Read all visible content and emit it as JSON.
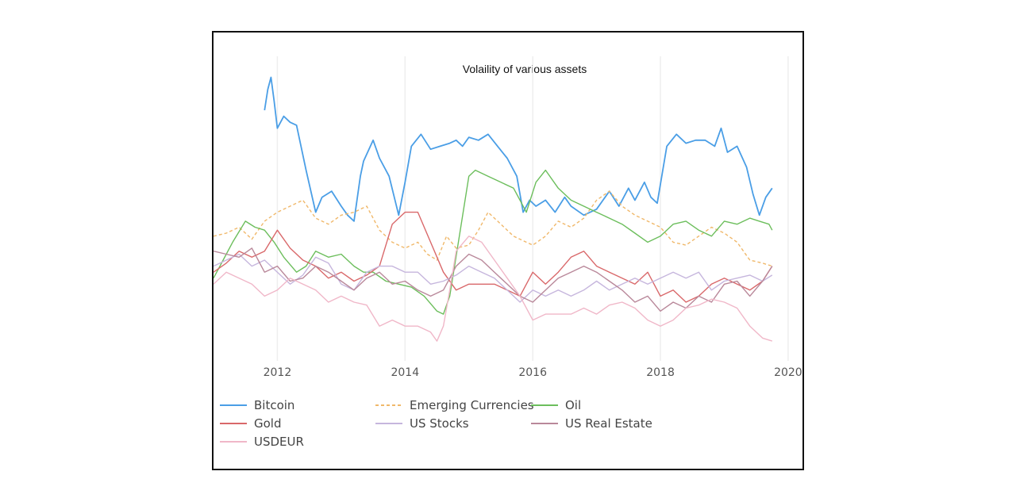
{
  "chart_data": {
    "type": "line",
    "title": "Volaility of various assets",
    "xlabel": "",
    "ylabel": "",
    "xlim": [
      2011.0,
      2020.2
    ],
    "ylim": [
      0,
      100
    ],
    "grid": true,
    "x_ticks": [
      "2012",
      "2014",
      "2016",
      "2018",
      "2020"
    ],
    "x_tick_values": [
      2012,
      2014,
      2016,
      2018,
      2020
    ],
    "legend_position": "bottom",
    "series": [
      {
        "name": "Bitcoin",
        "color": "#4a9ee6",
        "dash": "solid",
        "x": [
          2011.8,
          2011.85,
          2011.9,
          2011.95,
          2012.0,
          2012.1,
          2012.2,
          2012.3,
          2012.45,
          2012.6,
          2012.7,
          2012.85,
          2013.0,
          2013.1,
          2013.2,
          2013.3,
          2013.35,
          2013.5,
          2013.6,
          2013.75,
          2013.9,
          2014.0,
          2014.1,
          2014.25,
          2014.4,
          2014.55,
          2014.7,
          2014.8,
          2014.9,
          2015.0,
          2015.15,
          2015.3,
          2015.45,
          2015.6,
          2015.75,
          2015.85,
          2015.95,
          2016.05,
          2016.2,
          2016.35,
          2016.5,
          2016.6,
          2016.8,
          2017.0,
          2017.2,
          2017.35,
          2017.5,
          2017.6,
          2017.75,
          2017.85,
          2017.95,
          2018.1,
          2018.25,
          2018.4,
          2018.55,
          2018.7,
          2018.85,
          2018.95,
          2019.05,
          2019.2,
          2019.35,
          2019.45,
          2019.55,
          2019.65,
          2019.75
        ],
        "values": [
          82,
          89,
          93,
          85,
          76,
          80,
          78,
          77,
          62,
          48,
          53,
          55,
          50,
          47,
          45,
          60,
          65,
          72,
          66,
          60,
          47,
          58,
          70,
          74,
          69,
          70,
          71,
          72,
          70,
          73,
          72,
          74,
          70,
          66,
          60,
          48,
          52,
          50,
          52,
          48,
          53,
          50,
          47,
          49,
          55,
          50,
          56,
          52,
          58,
          53,
          51,
          70,
          74,
          71,
          72,
          72,
          70,
          76,
          68,
          70,
          63,
          54,
          47,
          53,
          56
        ]
      },
      {
        "name": "Emerging Currencies",
        "color": "#f0b86a",
        "dash": "dashed",
        "x": [
          2011.0,
          2011.2,
          2011.4,
          2011.6,
          2011.8,
          2012.0,
          2012.2,
          2012.4,
          2012.6,
          2012.8,
          2013.0,
          2013.2,
          2013.4,
          2013.6,
          2013.8,
          2014.0,
          2014.2,
          2014.35,
          2014.5,
          2014.65,
          2014.8,
          2015.0,
          2015.15,
          2015.3,
          2015.5,
          2015.7,
          2015.9,
          2016.0,
          2016.2,
          2016.4,
          2016.6,
          2016.8,
          2017.0,
          2017.2,
          2017.4,
          2017.6,
          2017.8,
          2018.0,
          2018.2,
          2018.4,
          2018.6,
          2018.8,
          2019.0,
          2019.2,
          2019.4,
          2019.6,
          2019.75
        ],
        "values": [
          40,
          41,
          43,
          39,
          45,
          48,
          50,
          52,
          46,
          44,
          47,
          48,
          50,
          42,
          38,
          36,
          38,
          34,
          32,
          40,
          36,
          37,
          42,
          48,
          44,
          40,
          38,
          37,
          40,
          45,
          43,
          46,
          52,
          55,
          50,
          47,
          45,
          43,
          38,
          37,
          40,
          43,
          41,
          38,
          32,
          31,
          30
        ]
      },
      {
        "name": "Oil",
        "color": "#6cbe5c",
        "dash": "solid",
        "x": [
          2011.0,
          2011.15,
          2011.3,
          2011.5,
          2011.65,
          2011.8,
          2011.95,
          2012.1,
          2012.3,
          2012.45,
          2012.6,
          2012.8,
          2013.0,
          2013.2,
          2013.35,
          2013.5,
          2013.7,
          2013.9,
          2014.1,
          2014.3,
          2014.5,
          2014.6,
          2014.7,
          2014.85,
          2015.0,
          2015.1,
          2015.3,
          2015.5,
          2015.7,
          2015.8,
          2015.9,
          2016.05,
          2016.2,
          2016.4,
          2016.6,
          2016.8,
          2017.0,
          2017.2,
          2017.4,
          2017.6,
          2017.8,
          2018.0,
          2018.2,
          2018.4,
          2018.6,
          2018.8,
          2019.0,
          2019.2,
          2019.4,
          2019.55,
          2019.7,
          2019.75
        ],
        "values": [
          26,
          32,
          38,
          45,
          43,
          42,
          38,
          33,
          28,
          30,
          35,
          33,
          34,
          30,
          28,
          28,
          25,
          24,
          23,
          20,
          15,
          14,
          20,
          40,
          60,
          62,
          60,
          58,
          56,
          52,
          48,
          58,
          62,
          56,
          52,
          50,
          48,
          46,
          44,
          41,
          38,
          40,
          44,
          45,
          42,
          40,
          45,
          44,
          46,
          45,
          44,
          42
        ]
      },
      {
        "name": "Gold",
        "color": "#d9686a",
        "dash": "solid",
        "x": [
          2011.0,
          2011.2,
          2011.4,
          2011.6,
          2011.8,
          2012.0,
          2012.2,
          2012.4,
          2012.6,
          2012.8,
          2013.0,
          2013.2,
          2013.4,
          2013.6,
          2013.8,
          2014.0,
          2014.2,
          2014.4,
          2014.6,
          2014.8,
          2015.0,
          2015.2,
          2015.4,
          2015.6,
          2015.8,
          2016.0,
          2016.2,
          2016.4,
          2016.6,
          2016.8,
          2017.0,
          2017.2,
          2017.4,
          2017.6,
          2017.8,
          2018.0,
          2018.2,
          2018.4,
          2018.6,
          2018.8,
          2019.0,
          2019.2,
          2019.4,
          2019.6,
          2019.75
        ],
        "values": [
          28,
          31,
          35,
          33,
          35,
          42,
          36,
          32,
          30,
          26,
          28,
          25,
          27,
          30,
          44,
          48,
          48,
          38,
          28,
          22,
          24,
          24,
          24,
          22,
          20,
          28,
          24,
          28,
          33,
          35,
          30,
          28,
          26,
          24,
          28,
          20,
          22,
          18,
          20,
          24,
          26,
          24,
          22,
          25,
          30
        ]
      },
      {
        "name": "US Stocks",
        "color": "#c6b6dd",
        "dash": "solid",
        "x": [
          2011.0,
          2011.2,
          2011.4,
          2011.6,
          2011.8,
          2012.0,
          2012.2,
          2012.4,
          2012.6,
          2012.8,
          2013.0,
          2013.2,
          2013.4,
          2013.6,
          2013.8,
          2014.0,
          2014.2,
          2014.4,
          2014.6,
          2014.8,
          2015.0,
          2015.2,
          2015.4,
          2015.6,
          2015.8,
          2016.0,
          2016.2,
          2016.4,
          2016.6,
          2016.8,
          2017.0,
          2017.2,
          2017.4,
          2017.6,
          2017.8,
          2018.0,
          2018.2,
          2018.4,
          2018.6,
          2018.8,
          2019.0,
          2019.2,
          2019.4,
          2019.6,
          2019.75
        ],
        "values": [
          30,
          32,
          34,
          30,
          32,
          28,
          24,
          27,
          33,
          31,
          24,
          22,
          28,
          30,
          30,
          28,
          28,
          24,
          25,
          27,
          30,
          28,
          26,
          22,
          18,
          22,
          20,
          22,
          20,
          22,
          25,
          22,
          24,
          26,
          24,
          26,
          28,
          26,
          28,
          22,
          25,
          26,
          27,
          25,
          27
        ]
      },
      {
        "name": "US Real Estate",
        "color": "#b9889a",
        "dash": "solid",
        "x": [
          2011.0,
          2011.2,
          2011.4,
          2011.6,
          2011.8,
          2012.0,
          2012.2,
          2012.4,
          2012.6,
          2012.8,
          2013.0,
          2013.2,
          2013.4,
          2013.6,
          2013.8,
          2014.0,
          2014.2,
          2014.4,
          2014.6,
          2014.8,
          2015.0,
          2015.2,
          2015.4,
          2015.6,
          2015.8,
          2016.0,
          2016.2,
          2016.4,
          2016.6,
          2016.8,
          2017.0,
          2017.2,
          2017.4,
          2017.6,
          2017.8,
          2018.0,
          2018.2,
          2018.4,
          2018.6,
          2018.8,
          2019.0,
          2019.2,
          2019.4,
          2019.6,
          2019.75
        ],
        "values": [
          35,
          34,
          33,
          36,
          28,
          30,
          25,
          26,
          30,
          28,
          25,
          22,
          26,
          28,
          24,
          25,
          22,
          20,
          22,
          30,
          34,
          32,
          28,
          24,
          20,
          18,
          22,
          26,
          28,
          30,
          28,
          25,
          22,
          18,
          20,
          15,
          18,
          16,
          20,
          18,
          24,
          25,
          20,
          25,
          30
        ]
      },
      {
        "name": "USDEUR",
        "color": "#f0b7c8",
        "dash": "solid",
        "x": [
          2011.0,
          2011.2,
          2011.4,
          2011.6,
          2011.8,
          2012.0,
          2012.2,
          2012.4,
          2012.6,
          2012.8,
          2013.0,
          2013.2,
          2013.4,
          2013.6,
          2013.8,
          2014.0,
          2014.2,
          2014.4,
          2014.5,
          2014.6,
          2014.7,
          2014.8,
          2015.0,
          2015.2,
          2015.4,
          2015.6,
          2015.8,
          2016.0,
          2016.2,
          2016.4,
          2016.6,
          2016.8,
          2017.0,
          2017.2,
          2017.4,
          2017.6,
          2017.8,
          2018.0,
          2018.2,
          2018.4,
          2018.6,
          2018.8,
          2019.0,
          2019.2,
          2019.4,
          2019.6,
          2019.75
        ],
        "values": [
          24,
          28,
          26,
          24,
          20,
          22,
          26,
          24,
          22,
          18,
          20,
          18,
          17,
          10,
          12,
          10,
          10,
          8,
          5,
          10,
          22,
          35,
          40,
          38,
          32,
          26,
          20,
          12,
          14,
          14,
          14,
          16,
          14,
          17,
          18,
          16,
          12,
          10,
          12,
          16,
          17,
          19,
          18,
          16,
          10,
          6,
          5
        ]
      }
    ]
  }
}
